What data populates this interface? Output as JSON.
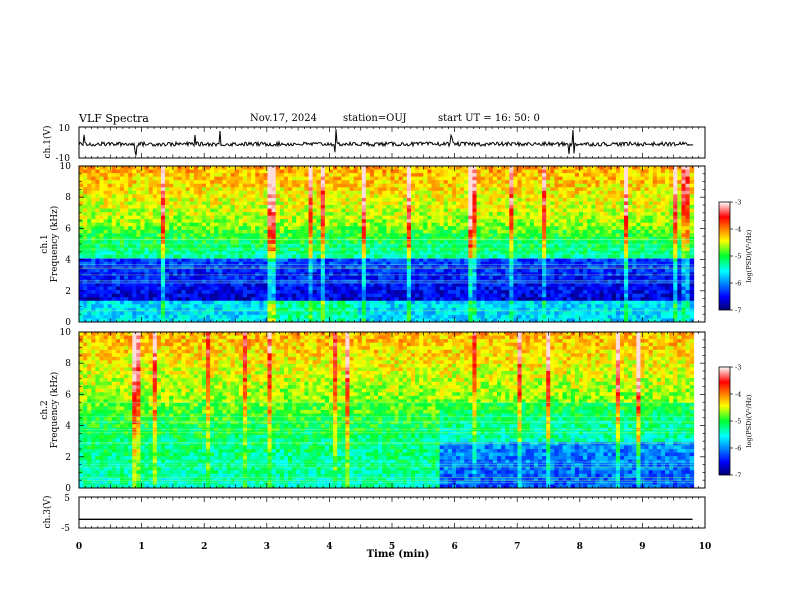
{
  "header": {
    "title": "VLF Spectra",
    "date": "Nov.17, 2024",
    "station": "station=OUJ",
    "start_time": "start  UT =   16: 50: 0"
  },
  "chart_data": [
    {
      "type": "line",
      "name": "ch1-waveform",
      "ylabel": "ch.1(V)",
      "ylim": [
        -10,
        10
      ],
      "yticks": [
        "10",
        "-10"
      ],
      "xlim": [
        0,
        10
      ],
      "baseline_level": -1,
      "trace_end_min": 9.82
    },
    {
      "type": "heatmap",
      "name": "ch1-spectrogram",
      "ylabel_top": "ch.1",
      "ylabel": "Frequency  (kHz)",
      "ylim": [
        0,
        10
      ],
      "yticks": [
        "0",
        "2",
        "4",
        "6",
        "8",
        "10"
      ],
      "xlim": [
        0,
        10
      ],
      "data_end_min": 9.82
    },
    {
      "type": "heatmap",
      "name": "ch2-spectrogram",
      "ylabel_top": "ch.2",
      "ylabel": "Frequency  (kHz)",
      "ylim": [
        0,
        10
      ],
      "yticks": [
        "0",
        "2",
        "4",
        "6",
        "8",
        "10"
      ],
      "xlim": [
        0,
        10
      ],
      "data_end_min": 9.82
    },
    {
      "type": "line",
      "name": "ch3-waveform",
      "ylabel": "ch.3(V)",
      "ylim": [
        -5,
        5
      ],
      "yticks": [
        "5",
        "-5"
      ],
      "xlim": [
        0,
        10
      ],
      "level": -2.2,
      "xlabel": "Time  (min)",
      "xticks": [
        "0",
        "1",
        "2",
        "3",
        "4",
        "5",
        "6",
        "7",
        "8",
        "9",
        "10"
      ]
    }
  ],
  "colorbar": {
    "label": "log(PSD)(V²/Hz)",
    "range": [
      -7,
      -3
    ],
    "ticks": [
      "-3",
      "-4",
      "-5",
      "-6",
      "-7"
    ]
  }
}
